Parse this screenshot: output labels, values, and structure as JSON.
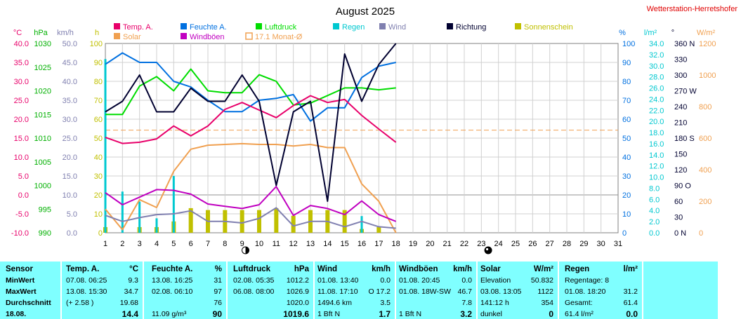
{
  "page": {
    "title": "August 2025",
    "station": "Wetterstation-Herretshofer"
  },
  "legend": [
    {
      "label": "Temp. A.",
      "color": "#e8006a"
    },
    {
      "label": "Solar",
      "color": "#f0a050"
    },
    {
      "label": "Feuchte A.",
      "color": "#0070e0"
    },
    {
      "label": "Windböen",
      "color": "#c000c0"
    },
    {
      "label": "Luftdruck",
      "color": "#00dd00"
    },
    {
      "label": "17.1 Monat-Ø",
      "color": "#f0a050"
    },
    {
      "label": "Regen",
      "color": "#00c8d0"
    },
    {
      "label": "Wind",
      "color": "#8080b0"
    },
    {
      "label": "Richtung",
      "color": "#000030"
    },
    {
      "label": "Sonnenschein",
      "color": "#c0c000"
    }
  ],
  "axes": {
    "temp": {
      "unit": "°C",
      "ticks": [
        "40.0",
        "35.0",
        "30.0",
        "25.0",
        "20.0",
        "15.0",
        "10.0",
        "5.0",
        "0.0",
        "-5.0",
        "-10.0"
      ]
    },
    "pressure": {
      "unit": "hPa",
      "ticks": [
        "1030",
        "1025",
        "1020",
        "1015",
        "1010",
        "1005",
        "1000",
        "995",
        "990"
      ]
    },
    "wind": {
      "unit": "km/h",
      "ticks": [
        "50.0",
        "45.0",
        "40.0",
        "35.0",
        "30.0",
        "25.0",
        "20.0",
        "15.0",
        "10.0",
        "5.0",
        "0.0"
      ]
    },
    "hours": {
      "unit": "h",
      "ticks": [
        "100",
        "90",
        "80",
        "70",
        "60",
        "50",
        "40",
        "30",
        "20",
        "10",
        "0"
      ]
    },
    "humidity": {
      "unit": "%",
      "ticks": [
        "100",
        "90",
        "80",
        "70",
        "60",
        "50",
        "40",
        "30",
        "20",
        "10",
        "0"
      ]
    },
    "rain": {
      "unit": "l/m²",
      "ticks": [
        "34.0",
        "32.0",
        "30.0",
        "28.0",
        "26.0",
        "24.0",
        "22.0",
        "20.0",
        "18.0",
        "16.0",
        "14.0",
        "12.0",
        "10.0",
        "8.0",
        "6.0",
        "4.0",
        "2.0",
        "0.0"
      ]
    },
    "direction": {
      "unit": "°",
      "ticks": [
        "360 N",
        "330",
        "300",
        "270 W",
        "240",
        "210",
        "180 S",
        "150",
        "120",
        "90  O",
        "60",
        "30",
        "0   N"
      ]
    },
    "solar": {
      "unit": "W/m²",
      "ticks": [
        "1200",
        "1000",
        "800",
        "600",
        "400",
        "200",
        "0"
      ]
    },
    "days": [
      "1",
      "2",
      "3",
      "4",
      "5",
      "6",
      "7",
      "8",
      "9",
      "10",
      "11",
      "12",
      "13",
      "14",
      "15",
      "16",
      "17",
      "18",
      "19",
      "20",
      "21",
      "22",
      "23",
      "24",
      "25",
      "26",
      "27",
      "28",
      "29",
      "30",
      "31"
    ]
  },
  "chart_data": {
    "type": "line",
    "title": "August 2025",
    "x": [
      1,
      2,
      3,
      4,
      5,
      6,
      7,
      8,
      9,
      10,
      11,
      12,
      13,
      14,
      15,
      16,
      17,
      18
    ],
    "series": [
      {
        "name": "Temp. A.",
        "unit": "°C",
        "color": "#e8006a",
        "values": [
          15.2,
          13.6,
          13.9,
          14.8,
          18.2,
          15.6,
          18.2,
          22.6,
          24.4,
          22.4,
          20.4,
          23.6,
          26.2,
          24.4,
          25.2,
          21.0,
          17.4,
          13.9
        ]
      },
      {
        "name": "Solar",
        "unit": "W/m²",
        "color": "#f0a050",
        "values": [
          150,
          20,
          210,
          160,
          390,
          530,
          555,
          560,
          565,
          560,
          560,
          550,
          560,
          540,
          540,
          310,
          200,
          0
        ]
      },
      {
        "name": "Feuchte A.",
        "unit": "%",
        "color": "#0070e0",
        "values": [
          89,
          95,
          90,
          90,
          80,
          77,
          70,
          64,
          64,
          70,
          71,
          73,
          59,
          66,
          66,
          82,
          88,
          90
        ]
      },
      {
        "name": "Windböen",
        "unit": "km/h",
        "color": "#c000c0",
        "values": [
          10.6,
          7.4,
          9.4,
          11.4,
          11.2,
          10.2,
          7.6,
          7.0,
          6.4,
          7.4,
          12.2,
          4.6,
          7.2,
          6.4,
          4.8,
          8.4,
          4.8,
          3.0
        ]
      },
      {
        "name": "Luftdruck",
        "unit": "hPa",
        "color": "#00dd00",
        "values": [
          1015.0,
          1015.0,
          1021.0,
          1023.0,
          1020.0,
          1024.6,
          1020.0,
          1019.6,
          1019.6,
          1023.4,
          1022.0,
          1017.0,
          1017.4,
          1019.0,
          1020.6,
          1020.6,
          1020.2,
          1020.6
        ]
      },
      {
        "name": "Wind",
        "unit": "km/h",
        "color": "#8080b0",
        "values": [
          4.6,
          3.0,
          4.0,
          4.8,
          5.0,
          5.8,
          3.0,
          3.0,
          2.6,
          3.8,
          6.6,
          1.8,
          3.0,
          3.0,
          1.6,
          3.0,
          1.6,
          1.2
        ]
      },
      {
        "name": "Richtung",
        "unit": "°",
        "color": "#000030",
        "values": [
          230,
          250,
          300,
          230,
          230,
          275,
          250,
          250,
          300,
          250,
          90,
          230,
          250,
          60,
          340,
          250,
          320,
          360
        ]
      }
    ],
    "rain": {
      "name": "Regen",
      "unit": "l/m²",
      "color": "#00c8d0",
      "days": [
        1,
        2,
        3,
        4,
        5,
        16
      ],
      "values": [
        31.2,
        7.4,
        5.6,
        2.6,
        10.2,
        3.0
      ]
    },
    "sunshine": {
      "name": "Sonnenschein",
      "unit": "h",
      "color": "#c0c000",
      "days": [
        1,
        2,
        3,
        4,
        5,
        6,
        7,
        8,
        9,
        10,
        11,
        12,
        13,
        14,
        15,
        16,
        17
      ],
      "values": [
        3,
        0,
        3,
        3,
        6,
        13,
        12,
        12,
        12,
        12,
        13,
        9,
        12,
        12,
        12,
        2,
        3
      ]
    },
    "monthly_avg_temp": {
      "name": "17.1 Monat-Ø",
      "value": 17.1
    }
  },
  "markers": {
    "first_quarter_day": 9.2,
    "full_moon_day": 23.4
  },
  "stats": {
    "sensor": {
      "header": "Sensor",
      "rows": [
        "MinWert",
        "MaxWert",
        "Durchschnitt",
        "18.08."
      ]
    },
    "temp": {
      "header": "Temp. A.",
      "unit": "°C",
      "rows": [
        [
          "07.08.  06:25",
          "9.3"
        ],
        [
          "13.08.  15:30",
          "34.7"
        ],
        [
          "(+ 2.58 )",
          "19.68"
        ],
        [
          "",
          "14.4"
        ]
      ]
    },
    "humidity": {
      "header": "Feuchte A.",
      "unit": "%",
      "rows": [
        [
          "13.08.  16:25",
          "31"
        ],
        [
          "02.08.  06:10",
          "97"
        ],
        [
          "",
          "76"
        ],
        [
          "11.09 g/m³",
          "90"
        ]
      ]
    },
    "pressure": {
      "header": "Luftdruck",
      "unit": "hPa",
      "rows": [
        [
          "02.08.  05:35",
          "1012.2"
        ],
        [
          "06.08.  08:00",
          "1026.9"
        ],
        [
          "",
          "1020.0"
        ],
        [
          "",
          "1019.6"
        ]
      ]
    },
    "wind": {
      "header": "Wind",
      "unit": "km/h",
      "rows": [
        [
          "01.08.  13:40",
          "0.0"
        ],
        [
          "11.08.  17:10",
          "O  17.2"
        ],
        [
          "1494.6 km",
          "3.5"
        ],
        [
          "1 Bft N",
          "1.7"
        ]
      ]
    },
    "gusts": {
      "header": "Windböen",
      "unit": "km/h",
      "rows": [
        [
          "01.08.  20:45",
          "0.0"
        ],
        [
          "01.08.  18W-SW",
          "46.7"
        ],
        [
          "",
          "7.8"
        ],
        [
          "1 Bft N",
          "3.2"
        ]
      ]
    },
    "solar": {
      "header": "Solar",
      "unit": "W/m²",
      "rows": [
        [
          "Elevation",
          "50.832"
        ],
        [
          "03.08.  13:05",
          "1122"
        ],
        [
          "141:12 h",
          "354"
        ],
        [
          "dunkel",
          "0"
        ]
      ]
    },
    "rain": {
      "header": "Regen",
      "unit": "l/m²",
      "rows": [
        [
          "Regentage: 8",
          ""
        ],
        [
          "01.08.  18:20",
          "31.2"
        ],
        [
          "Gesamt:",
          "61.4"
        ],
        [
          "61.4 l/m²",
          "0.0"
        ]
      ]
    }
  }
}
